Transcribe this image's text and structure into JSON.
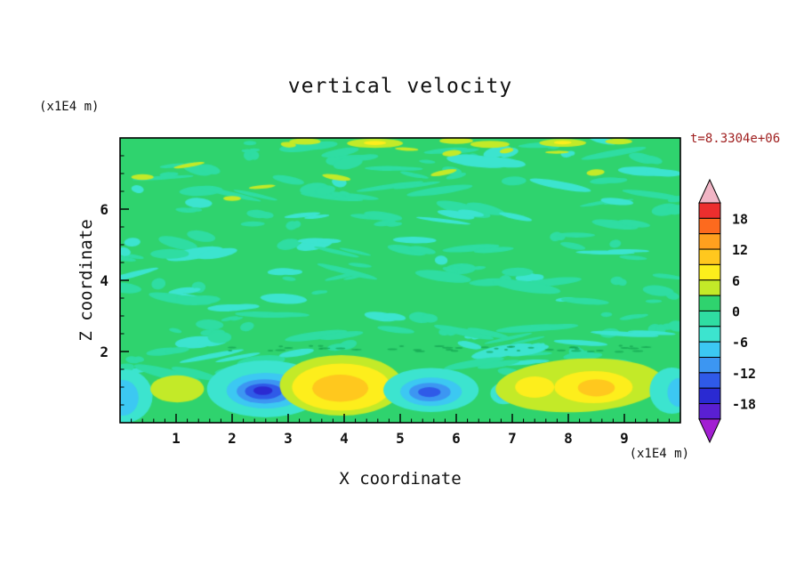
{
  "title": "vertical velocity",
  "timestamp": {
    "text": "t=8.3304e+06",
    "color": "#a02020"
  },
  "axes": {
    "x_label": "X coordinate",
    "y_label": "Z coordinate",
    "x_unit": "(x1E4 m)",
    "y_unit": "(x1E4 m)",
    "x_range": [
      0,
      10
    ],
    "z_range": [
      0,
      8
    ],
    "x_major_ticks": [
      1,
      2,
      3,
      4,
      5,
      6,
      7,
      8,
      9
    ],
    "x_minor_step": 0.2,
    "y_major_ticks": [
      2,
      4,
      6
    ],
    "y_minor_step": 0.5
  },
  "chart_data": {
    "type": "heatmap",
    "title": "vertical velocity",
    "xlabel": "X coordinate (x1E4 m)",
    "ylabel": "Z coordinate (x1E4 m)",
    "time_label": "t=8.3304e+06",
    "x_range": [
      0,
      10
    ],
    "z_range": [
      0,
      8
    ],
    "contour_interval": 3,
    "background_value": 0,
    "background_color": "#2fd36e",
    "colorbar": {
      "labels": [
        18,
        12,
        6,
        0,
        -6,
        -12,
        -18
      ],
      "segments_top_to_bottom": [
        {
          "name": "above +21",
          "color": "#f1b5c5"
        },
        {
          "name": "+18..+21",
          "color": "#ec2e2e"
        },
        {
          "name": "+15..+18",
          "color": "#fd6a1e"
        },
        {
          "name": "+12..+15",
          "color": "#ffa01e"
        },
        {
          "name": "+9..+12",
          "color": "#ffc81e"
        },
        {
          "name": "+6..+9",
          "color": "#fdee1c"
        },
        {
          "name": "+3..+6",
          "color": "#c3ea28"
        },
        {
          "name": "0..+3",
          "color": "#2fd36e"
        },
        {
          "name": "-3..0",
          "color": "#2fdda2"
        },
        {
          "name": "-6..-3",
          "color": "#3ce4cf"
        },
        {
          "name": "-9..-6",
          "color": "#3cc8f2"
        },
        {
          "name": "-12..-9",
          "color": "#3c96f2"
        },
        {
          "name": "-15..-12",
          "color": "#2f5ae8"
        },
        {
          "name": "-18..-15",
          "color": "#2a2ad2"
        },
        {
          "name": "-21..-18",
          "color": "#5a1fd2"
        },
        {
          "name": "below -21",
          "color": "#a21fd2"
        }
      ]
    },
    "features": [
      {
        "x": 0.08,
        "z": 0.75,
        "rx": 0.5,
        "rz": 0.75,
        "color": "#3ce4cf",
        "value": -5
      },
      {
        "x": 0.05,
        "z": 0.7,
        "rx": 0.28,
        "rz": 0.5,
        "color": "#3cc8f2",
        "value": -8
      },
      {
        "x": 1.02,
        "z": 0.95,
        "rx": 0.48,
        "rz": 0.38,
        "color": "#c3ea28",
        "value": 4
      },
      {
        "x": 2.6,
        "z": 0.95,
        "rx": 1.05,
        "rz": 0.8,
        "color": "#3ce4cf",
        "value": -5
      },
      {
        "x": 2.6,
        "z": 0.9,
        "rx": 0.7,
        "rz": 0.5,
        "color": "#3cc8f2",
        "value": -8
      },
      {
        "x": 2.58,
        "z": 0.88,
        "rx": 0.5,
        "rz": 0.34,
        "color": "#3c96f2",
        "value": -10
      },
      {
        "x": 2.56,
        "z": 0.88,
        "rx": 0.33,
        "rz": 0.22,
        "color": "#2f5ae8",
        "value": -13
      },
      {
        "x": 2.55,
        "z": 0.9,
        "rx": 0.17,
        "rz": 0.12,
        "color": "#2a2ad2",
        "value": -16
      },
      {
        "x": 3.95,
        "z": 1.05,
        "rx": 1.1,
        "rz": 0.85,
        "color": "#c3ea28",
        "value": 4
      },
      {
        "x": 3.95,
        "z": 1.0,
        "rx": 0.88,
        "rz": 0.66,
        "color": "#fdee1c",
        "value": 7
      },
      {
        "x": 3.93,
        "z": 0.97,
        "rx": 0.5,
        "rz": 0.38,
        "color": "#ffc81e",
        "value": 10
      },
      {
        "x": 5.55,
        "z": 0.92,
        "rx": 0.85,
        "rz": 0.62,
        "color": "#3ce4cf",
        "value": -5
      },
      {
        "x": 5.55,
        "z": 0.87,
        "rx": 0.55,
        "rz": 0.4,
        "color": "#3cc8f2",
        "value": -8
      },
      {
        "x": 5.53,
        "z": 0.86,
        "rx": 0.37,
        "rz": 0.26,
        "color": "#3c96f2",
        "value": -10
      },
      {
        "x": 5.52,
        "z": 0.86,
        "rx": 0.2,
        "rz": 0.14,
        "color": "#2f5ae8",
        "value": -13
      },
      {
        "x": 6.85,
        "z": 0.82,
        "rx": 0.24,
        "rz": 0.3,
        "color": "#3ce4cf",
        "value": -5
      },
      {
        "x": 6.85,
        "z": 0.8,
        "rx": 0.13,
        "rz": 0.17,
        "color": "#3cc8f2",
        "value": -7
      },
      {
        "x": 8.2,
        "z": 1.05,
        "rx": 1.5,
        "rz": 0.75,
        "color": "#c3ea28",
        "value": 4,
        "rot": -0.05
      },
      {
        "x": 7.4,
        "z": 1.0,
        "rx": 0.35,
        "rz": 0.3,
        "color": "#fdee1c",
        "value": 7
      },
      {
        "x": 8.45,
        "z": 1.0,
        "rx": 0.7,
        "rz": 0.45,
        "color": "#fdee1c",
        "value": 7
      },
      {
        "x": 8.5,
        "z": 0.98,
        "rx": 0.33,
        "rz": 0.24,
        "color": "#ffc81e",
        "value": 9
      },
      {
        "x": 9.85,
        "z": 0.9,
        "rx": 0.4,
        "rz": 0.65,
        "color": "#3ce4cf",
        "value": -5
      },
      {
        "x": 9.97,
        "z": 0.85,
        "rx": 0.2,
        "rz": 0.4,
        "color": "#3cc8f2",
        "value": -7
      },
      {
        "x": 3.3,
        "z": 7.9,
        "rx": 0.28,
        "rz": 0.09,
        "color": "#c3ea28",
        "value": 4
      },
      {
        "x": 4.55,
        "z": 7.85,
        "rx": 0.5,
        "rz": 0.13,
        "color": "#c3ea28",
        "value": 4
      },
      {
        "x": 4.55,
        "z": 7.86,
        "rx": 0.2,
        "rz": 0.06,
        "color": "#fdee1c",
        "value": 7
      },
      {
        "x": 6.0,
        "z": 7.92,
        "rx": 0.3,
        "rz": 0.09,
        "color": "#c3ea28",
        "value": 4
      },
      {
        "x": 6.6,
        "z": 7.82,
        "rx": 0.35,
        "rz": 0.1,
        "color": "#c3ea28",
        "value": 4
      },
      {
        "x": 7.9,
        "z": 7.86,
        "rx": 0.42,
        "rz": 0.11,
        "color": "#c3ea28",
        "value": 4
      },
      {
        "x": 7.9,
        "z": 7.87,
        "rx": 0.16,
        "rz": 0.05,
        "color": "#fdee1c",
        "value": 7
      },
      {
        "x": 8.9,
        "z": 7.9,
        "rx": 0.24,
        "rz": 0.08,
        "color": "#c3ea28",
        "value": 4
      },
      {
        "x": 2.0,
        "z": 6.3,
        "rx": 0.16,
        "rz": 0.07,
        "color": "#c3ea28",
        "value": 4
      },
      {
        "x": 0.4,
        "z": 6.9,
        "rx": 0.2,
        "rz": 0.08,
        "color": "#c3ea28",
        "value": 4
      }
    ],
    "noise": {
      "seed": 11,
      "count": 165,
      "colors": [
        "#2fdda2",
        "#3ce4cf"
      ],
      "color_weights": [
        0.72,
        0.28
      ],
      "x_min": 0,
      "x_max": 10,
      "z_min": 1.35,
      "z_max": 7.95,
      "rx_min": 0.1,
      "rx_max": 0.62,
      "rz_min": 0.05,
      "rz_max": 0.17
    },
    "noise_specks": {
      "seed": 5,
      "count": 10,
      "color": "#c3ea28",
      "x_min": 0,
      "x_max": 10,
      "z_min": 6.6,
      "z_max": 7.95,
      "rx_min": 0.08,
      "rx_max": 0.28,
      "rz_min": 0.04,
      "rz_max": 0.09
    },
    "dash_row": {
      "seed": 9,
      "count": 44,
      "color": "#12a350",
      "z_center": 2.08,
      "z_jitter": 0.18,
      "x_min": 1.2,
      "x_max": 9.6,
      "rx_min": 0.03,
      "rx_max": 0.1,
      "rz": 0.02
    }
  }
}
